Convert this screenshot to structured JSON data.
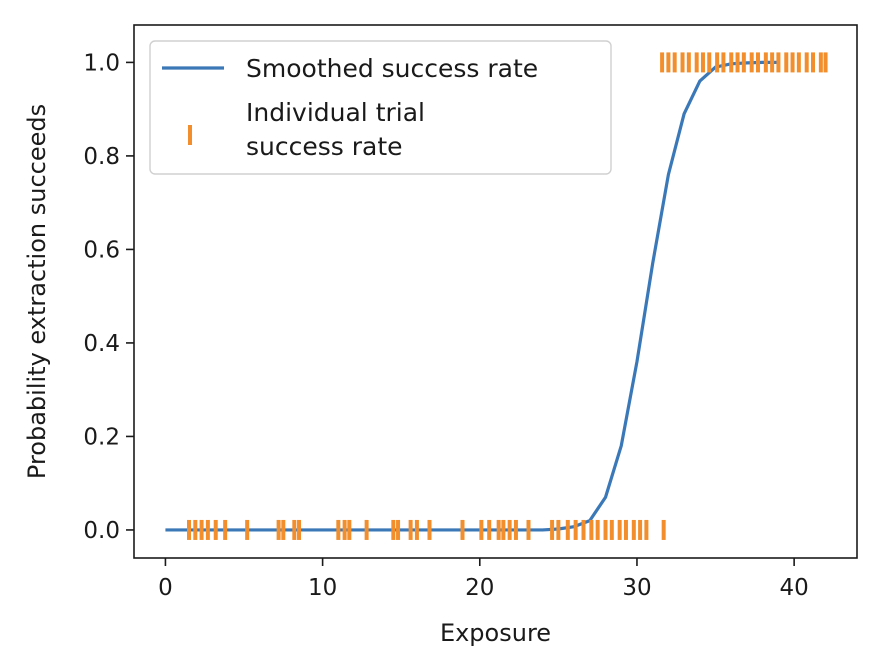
{
  "chart_data": {
    "type": "scatter",
    "title": "",
    "xlabel": "Exposure",
    "ylabel": "Probability extraction succeeds",
    "xlim": [
      -2,
      44
    ],
    "ylim": [
      -0.06,
      1.08
    ],
    "xticks": [
      0,
      10,
      20,
      30,
      40
    ],
    "yticks": [
      0.0,
      0.2,
      0.4,
      0.6,
      0.8,
      1.0
    ],
    "xtick_labels": [
      "0",
      "10",
      "20",
      "30",
      "40"
    ],
    "ytick_labels": [
      "0.0",
      "0.2",
      "0.4",
      "0.6",
      "0.8",
      "1.0"
    ],
    "grid": false,
    "legend_position": "top-left",
    "series": [
      {
        "name": "Smoothed success rate",
        "kind": "line",
        "color": "#3a78b8",
        "x": [
          0,
          5,
          10,
          15,
          20,
          24,
          25,
          26,
          27,
          28,
          29,
          30,
          31,
          32,
          33,
          34,
          35,
          36,
          37,
          38,
          39
        ],
        "y": [
          0.0,
          0.0,
          0.0,
          0.0,
          0.0,
          0.0,
          0.002,
          0.007,
          0.02,
          0.07,
          0.18,
          0.36,
          0.57,
          0.76,
          0.89,
          0.96,
          0.99,
          0.997,
          0.999,
          1.0,
          1.0
        ]
      },
      {
        "name": "Individual trial\nsuccess rate",
        "legend_lines": [
          "Individual trial",
          "success rate"
        ],
        "kind": "marker",
        "color": "#f28e2b",
        "marker": "vertical-line",
        "x": [
          1.5,
          1.9,
          2.3,
          2.7,
          3.2,
          3.8,
          5.2,
          7.2,
          7.5,
          8.2,
          8.5,
          11.0,
          11.4,
          11.7,
          12.8,
          14.5,
          14.8,
          15.6,
          16.0,
          16.8,
          18.9,
          20.1,
          20.6,
          21.2,
          21.5,
          21.9,
          22.3,
          23.1,
          24.6,
          25.0,
          25.6,
          26.1,
          26.6,
          27.1,
          27.5,
          28.0,
          28.4,
          28.9,
          29.3,
          29.8,
          30.2,
          30.6,
          31.7,
          31.6,
          32.0,
          32.4,
          32.9,
          33.3,
          33.8,
          34.2,
          34.6,
          35.1,
          35.5,
          36.0,
          36.4,
          36.8,
          37.3,
          37.7,
          38.2,
          38.6,
          39.0,
          39.5,
          39.9,
          40.3,
          40.8,
          41.2,
          41.7,
          42.0
        ],
        "y": [
          0,
          0,
          0,
          0,
          0,
          0,
          0,
          0,
          0,
          0,
          0,
          0,
          0,
          0,
          0,
          0,
          0,
          0,
          0,
          0,
          0,
          0,
          0,
          0,
          0,
          0,
          0,
          0,
          0,
          0,
          0,
          0,
          0,
          0,
          0,
          0,
          0,
          0,
          0,
          0,
          0,
          0,
          0,
          1,
          1,
          1,
          1,
          1,
          1,
          1,
          1,
          1,
          1,
          1,
          1,
          1,
          1,
          1,
          1,
          1,
          1,
          1,
          1,
          1,
          1,
          1,
          1,
          1
        ]
      }
    ]
  }
}
